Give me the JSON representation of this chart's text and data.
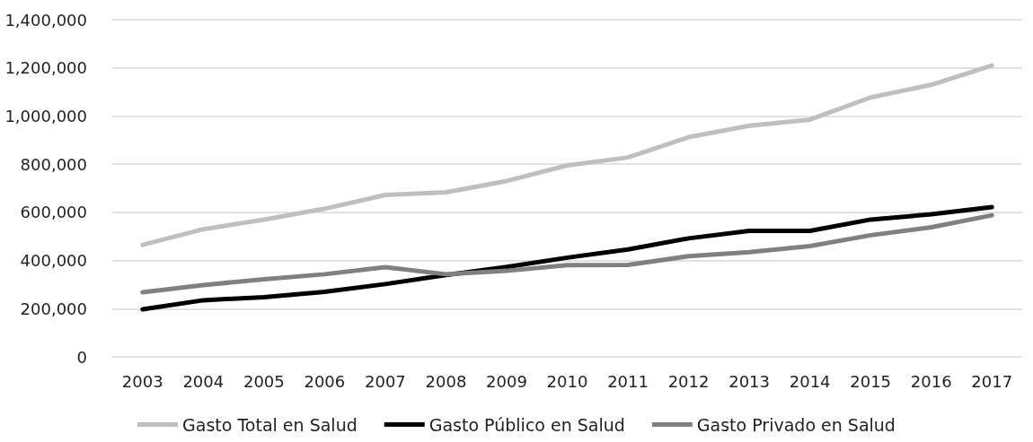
{
  "chart_data": {
    "type": "line",
    "categories": [
      "2003",
      "2004",
      "2005",
      "2006",
      "2007",
      "2008",
      "2009",
      "2010",
      "2011",
      "2012",
      "2013",
      "2014",
      "2015",
      "2016",
      "2017"
    ],
    "series": [
      {
        "name": "Gasto Total en Salud",
        "color": "#bfbfbf",
        "values": [
          465000,
          530000,
          570000,
          615000,
          672000,
          683000,
          730000,
          795000,
          828000,
          912000,
          960000,
          985000,
          1077000,
          1130000,
          1210000
        ]
      },
      {
        "name": "Gasto Público en Salud",
        "color": "#000000",
        "values": [
          197000,
          235000,
          248000,
          270000,
          302000,
          340000,
          373000,
          412000,
          446000,
          492000,
          523000,
          523000,
          570000,
          592000,
          622000
        ]
      },
      {
        "name": "Gasto Privado en Salud",
        "color": "#808080",
        "values": [
          268000,
          298000,
          322000,
          343000,
          372000,
          343000,
          357000,
          381000,
          382000,
          418000,
          435000,
          460000,
          505000,
          538000,
          588000
        ]
      }
    ],
    "ylim": [
      0,
      1400000
    ],
    "yticks": [
      0,
      {
        "value": 200000,
        "label": "200,000"
      },
      {
        "value": 400000,
        "label": "400,000"
      },
      {
        "value": 600000,
        "label": "600,000"
      },
      {
        "value": 800000,
        "label": "800,000"
      },
      {
        "value": 1000000,
        "label": "1,000,000"
      },
      {
        "value": 1200000,
        "label": "1,200,000"
      },
      {
        "value": 1400000,
        "label": "1,400,000"
      }
    ],
    "grid": "y",
    "legend": "bottom",
    "marker": "none",
    "line_style": "solid"
  }
}
